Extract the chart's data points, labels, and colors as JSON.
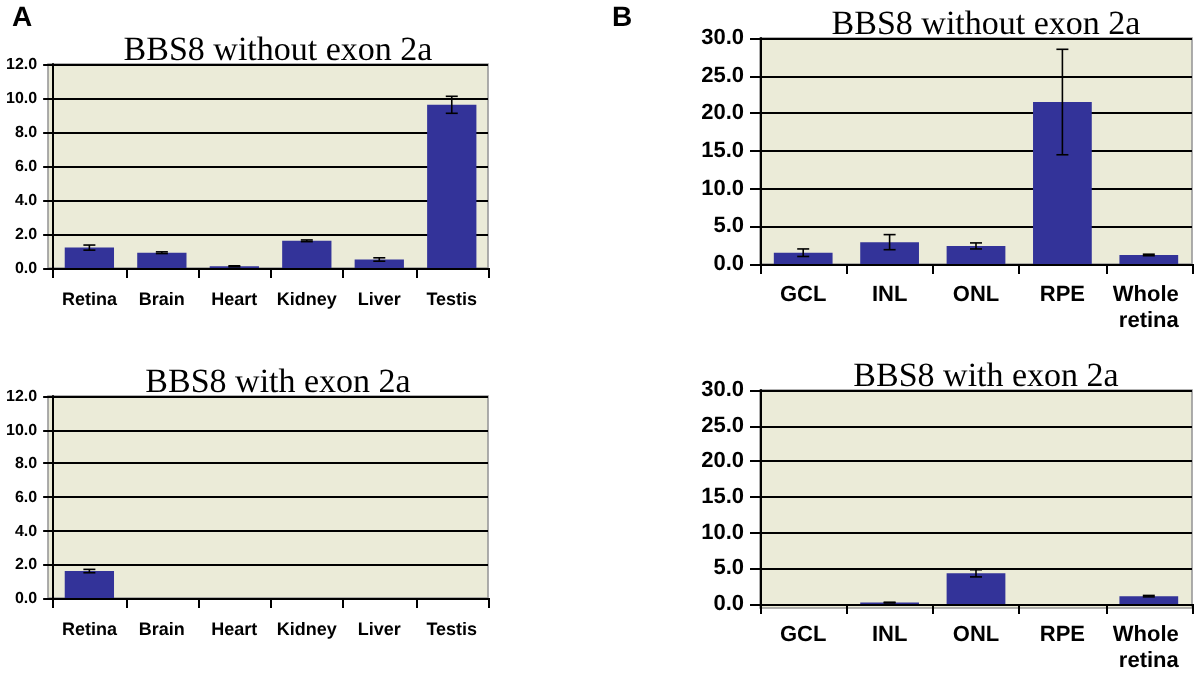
{
  "chart_data": [
    {
      "type": "bar",
      "title": "BBS8 without exon 2a",
      "annotations": [
        "A"
      ],
      "categories": [
        "Retina",
        "Brain",
        "Heart",
        "Kidney",
        "Liver",
        "Testis"
      ],
      "series": [
        {
          "color": "#333399",
          "values": [
            1.2,
            0.9,
            0.1,
            1.6,
            0.5,
            9.6
          ],
          "errors": [
            0.15,
            0.05,
            0.03,
            0.05,
            0.1,
            0.5
          ]
        }
      ],
      "ylim": [
        0,
        12
      ],
      "yticks": [
        {
          "value": 0,
          "label": "0.0"
        },
        {
          "value": 2,
          "label": "2.0"
        },
        {
          "value": 4,
          "label": "4.0"
        },
        {
          "value": 6,
          "label": "6.0"
        },
        {
          "value": 8,
          "label": "8.0"
        },
        {
          "value": 10,
          "label": "10.0"
        },
        {
          "value": 12,
          "label": "12.0"
        }
      ],
      "grid": "y"
    },
    {
      "type": "bar",
      "title": "BBS8 without exon 2a",
      "annotations": [
        "B"
      ],
      "categories": [
        "GCL",
        "INL",
        "ONL",
        "RPE",
        "Whole retina"
      ],
      "series": [
        {
          "color": "#333399",
          "values": [
            1.5,
            2.9,
            2.4,
            21.5,
            1.2
          ],
          "errors": [
            0.5,
            1.0,
            0.4,
            7.0,
            0.1
          ]
        }
      ],
      "ylim": [
        0,
        30
      ],
      "yticks": [
        {
          "value": 0,
          "label": "0.0"
        },
        {
          "value": 5,
          "label": "5.0"
        },
        {
          "value": 10,
          "label": "10.0"
        },
        {
          "value": 15,
          "label": "15.0"
        },
        {
          "value": 20,
          "label": "20.0"
        },
        {
          "value": 25,
          "label": "25.0"
        },
        {
          "value": 30,
          "label": "30.0"
        }
      ],
      "grid": "y"
    },
    {
      "type": "bar",
      "title": "BBS8 with exon 2a",
      "categories": [
        "Retina",
        "Brain",
        "Heart",
        "Kidney",
        "Liver",
        "Testis"
      ],
      "series": [
        {
          "color": "#333399",
          "values": [
            1.6,
            0,
            0,
            0,
            0,
            0
          ],
          "errors": [
            0.1,
            null,
            null,
            null,
            null,
            null
          ]
        }
      ],
      "ylim": [
        0,
        12
      ],
      "yticks": [
        {
          "value": 0,
          "label": "0.0"
        },
        {
          "value": 2,
          "label": "2.0"
        },
        {
          "value": 4,
          "label": "4.0"
        },
        {
          "value": 6,
          "label": "6.0"
        },
        {
          "value": 8,
          "label": "8.0"
        },
        {
          "value": 10,
          "label": "10.0"
        },
        {
          "value": 12,
          "label": "12.0"
        }
      ],
      "grid": "y"
    },
    {
      "type": "bar",
      "title": "BBS8 with exon 2a",
      "categories": [
        "GCL",
        "INL",
        "ONL",
        "RPE",
        "Whole retina"
      ],
      "series": [
        {
          "color": "#333399",
          "values": [
            0,
            0.2,
            4.3,
            0,
            1.1
          ],
          "errors": [
            null,
            0.05,
            0.5,
            null,
            0.1
          ]
        }
      ],
      "ylim": [
        0,
        30
      ],
      "yticks": [
        {
          "value": 0,
          "label": "0.0"
        },
        {
          "value": 5,
          "label": "5.0"
        },
        {
          "value": 10,
          "label": "10.0"
        },
        {
          "value": 15,
          "label": "15.0"
        },
        {
          "value": 20,
          "label": "20.0"
        },
        {
          "value": 25,
          "label": "25.0"
        },
        {
          "value": 30,
          "label": "30.0"
        }
      ],
      "grid": "y"
    }
  ]
}
